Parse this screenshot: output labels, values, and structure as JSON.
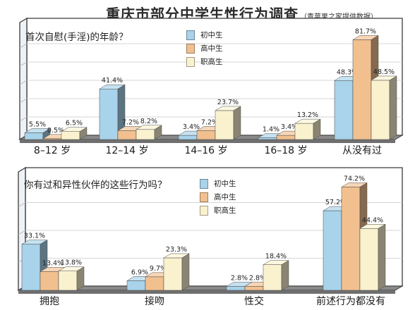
{
  "title": "重庆市部分中学生性行为调查",
  "subtitle": "（青苹果之家提供数据）",
  "series_colors": {
    "初中生": "#a8d3ea",
    "高中生": "#f2c08f",
    "职高生": "#faf2cf"
  },
  "chart_data": [
    {
      "type": "bar",
      "question": "首次自慰(手淫)的年龄？",
      "categories": [
        "8–12 岁",
        "12–14 岁",
        "14–16 岁",
        "16–18 岁",
        "从没有过"
      ],
      "series": [
        {
          "name": "初中生",
          "values": [
            5.5,
            41.4,
            3.4,
            1.4,
            48.3
          ]
        },
        {
          "name": "高中生",
          "values": [
            0.5,
            7.2,
            7.2,
            3.4,
            81.7
          ]
        },
        {
          "name": "职高生",
          "values": [
            6.5,
            8.2,
            23.7,
            13.2,
            48.5
          ]
        }
      ],
      "value_labels": [
        [
          "5.5%",
          "41.4%",
          "3.4%",
          "1.4%",
          "48.3%"
        ],
        [
          "0.5%",
          "7.2%",
          "7.2%",
          "3.4%",
          "81.7%"
        ],
        [
          "6.5%",
          "8.2%",
          "23.7%",
          "13.2%",
          "48.5%"
        ]
      ],
      "legend": [
        "初中生",
        "高中生",
        "职高生"
      ],
      "grid": true
    },
    {
      "type": "bar",
      "question": "你有过和异性伙伴的这些行为吗？",
      "categories": [
        "拥抱",
        "接吻",
        "性交",
        "前述行为都没有"
      ],
      "series": [
        {
          "name": "初中生",
          "values": [
            33.1,
            6.9,
            2.8,
            57.2
          ]
        },
        {
          "name": "高中生",
          "values": [
            13.4,
            9.7,
            2.8,
            74.2
          ]
        },
        {
          "name": "职高生",
          "values": [
            13.8,
            23.3,
            18.4,
            44.4
          ]
        }
      ],
      "value_labels": [
        [
          "33.1%",
          "6.9%",
          "2.8%",
          "57.2%"
        ],
        [
          "13.4%",
          "9.7%",
          "2.8%",
          "74.2%"
        ],
        [
          "13.8%",
          "23.3%",
          "18.4%",
          "44.4%"
        ]
      ],
      "legend": [
        "初中生",
        "高中生",
        "职高生"
      ],
      "grid": true
    }
  ]
}
